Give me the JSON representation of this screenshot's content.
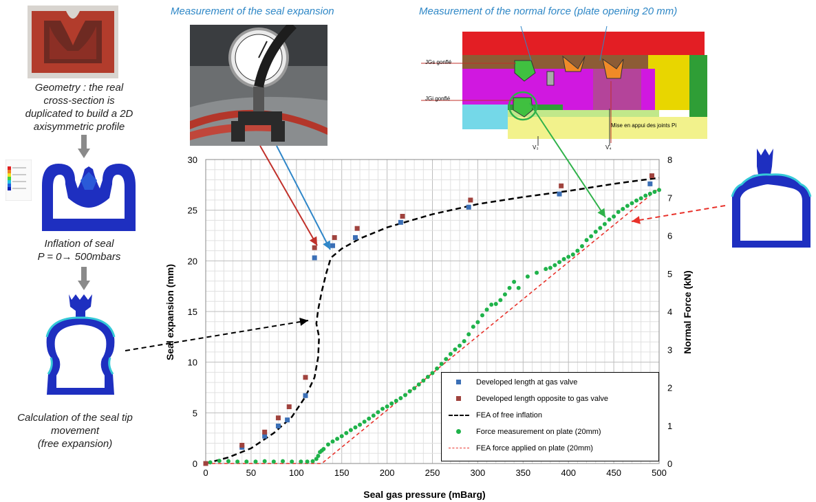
{
  "captions": {
    "geometry": [
      "Geometry : the real",
      "cross-section is",
      "duplicated to build a 2D",
      "axisymmetric profile"
    ],
    "inflation": [
      "Inflation of seal",
      "P = 0→ 500mbars"
    ],
    "calculation": [
      "Calculation of the seal tip",
      "movement",
      "(free expansion)"
    ],
    "expansion_title": "Measurement of the seal expansion",
    "force_title": "Measurement of  the normal force (plate opening 20 mm)"
  },
  "diagram_labels": {
    "jgs": "JGs gonflé",
    "jgi": "JGi gonflé",
    "mise": "Mise en appui des joints Pi",
    "v3": "V₃",
    "v4": "V₄"
  },
  "colors": {
    "caption_blue": "#2e87c6",
    "measured_blue": "#3b6fb6",
    "measured_red": "#a0433e",
    "fea_free": "#000000",
    "force_green": "#1fb24a",
    "fea_force": "#e8312a",
    "arrow_red": "#c0302a",
    "arrow_blue": "#2f86c8",
    "arrow_green": "#2fb24a",
    "seal_red": "#a03a2e",
    "seal_blue": "#1e2fc0"
  },
  "chart_data": {
    "type": "scatter",
    "xlabel": "Seal gas pressure (mBarg)",
    "ylabel": "Seal expansion (mm)",
    "y2label": "Normal  Force (kN)",
    "xlim": [
      0,
      500
    ],
    "ylim": [
      0,
      30
    ],
    "y2lim": [
      0,
      8
    ],
    "x_ticks": [
      "0",
      "50",
      "100",
      "150",
      "200",
      "250",
      "300",
      "350",
      "400",
      "450",
      "500"
    ],
    "y_ticks": [
      "0",
      "5",
      "10",
      "15",
      "20",
      "25",
      "30"
    ],
    "y2_ticks": [
      "0",
      "1",
      "2",
      "3",
      "4",
      "5",
      "6",
      "7",
      "8"
    ],
    "grid": true,
    "legend_position": "bottom-right",
    "series": [
      {
        "name": "Developed length at gas valve",
        "axis": "left",
        "marker": "square",
        "color": "#3b6fb6",
        "points": [
          [
            0,
            0
          ],
          [
            40,
            1.6
          ],
          [
            65,
            2.7
          ],
          [
            80,
            3.7
          ],
          [
            90,
            4.3
          ],
          [
            110,
            6.7
          ],
          [
            120,
            20.3
          ],
          [
            140,
            21.5
          ],
          [
            165,
            22.3
          ],
          [
            215,
            23.8
          ],
          [
            290,
            25.3
          ],
          [
            390,
            26.6
          ],
          [
            490,
            27.6
          ]
        ]
      },
      {
        "name": "Developed length opposite to gas valve",
        "axis": "left",
        "marker": "square",
        "color": "#a0433e",
        "points": [
          [
            0,
            0
          ],
          [
            40,
            1.8
          ],
          [
            65,
            3.1
          ],
          [
            80,
            4.5
          ],
          [
            92,
            5.6
          ],
          [
            110,
            8.5
          ],
          [
            120,
            21.3
          ],
          [
            142,
            22.3
          ],
          [
            167,
            23.2
          ],
          [
            217,
            24.4
          ],
          [
            292,
            26.0
          ],
          [
            392,
            27.4
          ],
          [
            492,
            28.4
          ]
        ]
      },
      {
        "name": "FEA  of free inflation",
        "axis": "left",
        "line": "dashed",
        "color": "#000000",
        "points": [
          [
            0,
            0
          ],
          [
            25,
            0.6
          ],
          [
            50,
            1.5
          ],
          [
            75,
            3.0
          ],
          [
            95,
            4.6
          ],
          [
            110,
            6.6
          ],
          [
            120,
            8.5
          ],
          [
            124,
            10.5
          ],
          [
            125,
            12.5
          ],
          [
            122,
            13.8
          ],
          [
            124,
            15.2
          ],
          [
            128,
            17.0
          ],
          [
            133,
            18.8
          ],
          [
            138,
            20.3
          ],
          [
            150,
            21.2
          ],
          [
            170,
            22.2
          ],
          [
            200,
            23.3
          ],
          [
            250,
            24.6
          ],
          [
            300,
            25.6
          ],
          [
            350,
            26.3
          ],
          [
            400,
            26.9
          ],
          [
            450,
            27.6
          ],
          [
            500,
            28.2
          ]
        ]
      },
      {
        "name": "Force measurement on plate (20mm)",
        "axis": "right",
        "marker": "dot",
        "color": "#1fb24a",
        "points": [
          [
            5,
            0.03
          ],
          [
            15,
            0.07
          ],
          [
            25,
            0.06
          ],
          [
            35,
            0.05
          ],
          [
            45,
            0.05
          ],
          [
            55,
            0.05
          ],
          [
            65,
            0.06
          ],
          [
            75,
            0.05
          ],
          [
            85,
            0.06
          ],
          [
            95,
            0.05
          ],
          [
            105,
            0.05
          ],
          [
            112,
            0.05
          ],
          [
            118,
            0.06
          ],
          [
            122,
            0.12
          ],
          [
            124,
            0.2
          ],
          [
            126,
            0.3
          ],
          [
            128,
            0.34
          ],
          [
            130,
            0.38
          ],
          [
            135,
            0.5
          ],
          [
            140,
            0.58
          ],
          [
            145,
            0.65
          ],
          [
            150,
            0.72
          ],
          [
            155,
            0.8
          ],
          [
            160,
            0.88
          ],
          [
            165,
            0.95
          ],
          [
            170,
            1.02
          ],
          [
            175,
            1.1
          ],
          [
            180,
            1.18
          ],
          [
            185,
            1.26
          ],
          [
            190,
            1.35
          ],
          [
            195,
            1.44
          ],
          [
            200,
            1.5
          ],
          [
            205,
            1.58
          ],
          [
            210,
            1.65
          ],
          [
            215,
            1.72
          ],
          [
            220,
            1.8
          ],
          [
            225,
            1.9
          ],
          [
            230,
            1.98
          ],
          [
            235,
            2.08
          ],
          [
            240,
            2.18
          ],
          [
            245,
            2.28
          ],
          [
            250,
            2.38
          ],
          [
            255,
            2.5
          ],
          [
            260,
            2.62
          ],
          [
            265,
            2.75
          ],
          [
            270,
            2.88
          ],
          [
            275,
            3.0
          ],
          [
            280,
            3.1
          ],
          [
            285,
            3.22
          ],
          [
            290,
            3.4
          ],
          [
            295,
            3.6
          ],
          [
            300,
            3.72
          ],
          [
            305,
            3.9
          ],
          [
            310,
            4.05
          ],
          [
            315,
            4.18
          ],
          [
            320,
            4.2
          ],
          [
            325,
            4.3
          ],
          [
            330,
            4.45
          ],
          [
            335,
            4.62
          ],
          [
            340,
            4.78
          ],
          [
            345,
            4.62
          ],
          [
            355,
            4.92
          ],
          [
            365,
            5.02
          ],
          [
            375,
            5.12
          ],
          [
            380,
            5.15
          ],
          [
            385,
            5.22
          ],
          [
            390,
            5.3
          ],
          [
            395,
            5.38
          ],
          [
            400,
            5.44
          ],
          [
            405,
            5.5
          ],
          [
            410,
            5.6
          ],
          [
            415,
            5.72
          ],
          [
            420,
            5.88
          ],
          [
            425,
            5.98
          ],
          [
            430,
            6.1
          ],
          [
            435,
            6.2
          ],
          [
            440,
            6.3
          ],
          [
            445,
            6.42
          ],
          [
            450,
            6.5
          ],
          [
            455,
            6.62
          ],
          [
            460,
            6.7
          ],
          [
            465,
            6.78
          ],
          [
            470,
            6.85
          ],
          [
            475,
            6.92
          ],
          [
            480,
            6.98
          ],
          [
            485,
            7.05
          ],
          [
            490,
            7.1
          ],
          [
            495,
            7.15
          ],
          [
            500,
            7.2
          ]
        ]
      },
      {
        "name": "FEA  force applied on  plate (20mm)",
        "axis": "right",
        "line": "dashed",
        "color": "#e8312a",
        "points": [
          [
            0,
            0
          ],
          [
            128,
            0
          ],
          [
            500,
            7.25
          ]
        ]
      }
    ]
  }
}
